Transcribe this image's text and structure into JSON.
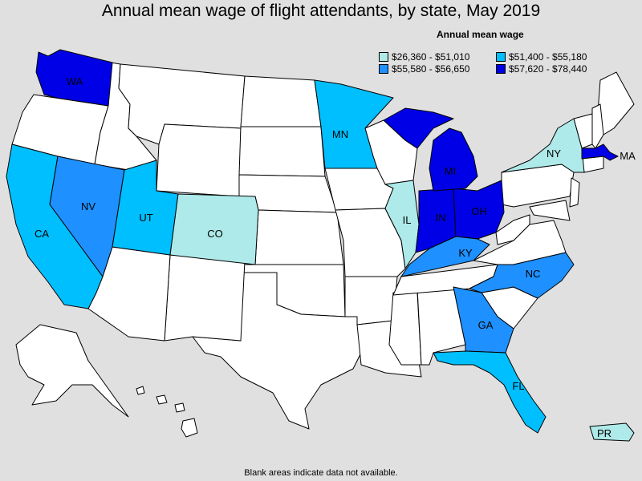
{
  "title": "Annual mean wage of flight attendants, by state, May 2019",
  "legend": {
    "title": "Annual mean wage",
    "items": [
      {
        "range": "$26,360 - $51,010",
        "color": "#aeeae9"
      },
      {
        "range": "$51,400 - $55,180",
        "color": "#00bfff"
      },
      {
        "range": "$55,580 - $56,650",
        "color": "#1e90ff"
      },
      {
        "range": "$57,620 - $78,440",
        "color": "#0000e6"
      }
    ]
  },
  "colors": {
    "no_data": "#ffffff",
    "background": "#e0e0e0"
  },
  "states": [
    {
      "abbr": "WA",
      "class": 3
    },
    {
      "abbr": "MN",
      "class": 1
    },
    {
      "abbr": "NY",
      "class": 0
    },
    {
      "abbr": "MA",
      "class": 3
    },
    {
      "abbr": "MI",
      "class": 3
    },
    {
      "abbr": "NV",
      "class": 2
    },
    {
      "abbr": "UT",
      "class": 1
    },
    {
      "abbr": "CO",
      "class": 0
    },
    {
      "abbr": "IL",
      "class": 0
    },
    {
      "abbr": "IN",
      "class": 3
    },
    {
      "abbr": "OH",
      "class": 3
    },
    {
      "abbr": "CA",
      "class": 1
    },
    {
      "abbr": "KY",
      "class": 2
    },
    {
      "abbr": "NC",
      "class": 2
    },
    {
      "abbr": "GA",
      "class": 2
    },
    {
      "abbr": "FL",
      "class": 1
    },
    {
      "abbr": "PR",
      "class": 0
    }
  ],
  "footnote": "Blank areas indicate data not available."
}
